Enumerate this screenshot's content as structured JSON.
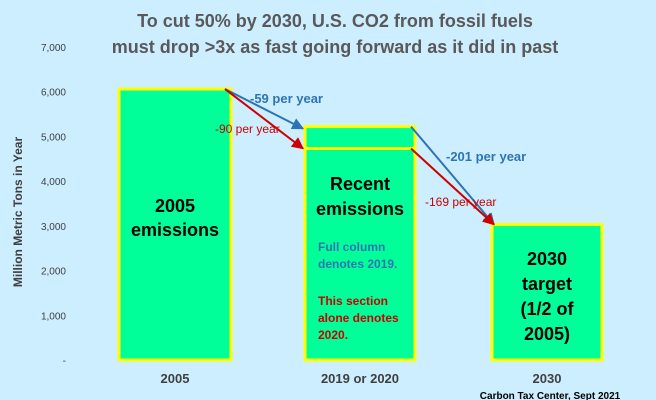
{
  "chart_data": {
    "type": "bar",
    "title": "To cut 50% by 2030, U.S. CO2 from fossil fuels",
    "subtitle": "must drop >3x as fast going forward as it did in past",
    "ylabel": "Million Metric Tons in Year",
    "yticks": [
      "-",
      "1,000",
      "2,000",
      "3,000",
      "4,000",
      "5,000",
      "6,000",
      "7,000"
    ],
    "ylim": [
      0,
      7000
    ],
    "grid": false,
    "categories": [
      "2005",
      "2019 or 2020",
      "2030"
    ],
    "values": [
      6060,
      5220,
      3030
    ],
    "overlay_value_2020": 4730,
    "bar_labels": {
      "b2005": [
        "2005",
        "emissions"
      ],
      "recent": [
        "Recent",
        "emissions"
      ],
      "target": [
        "2030",
        "target",
        "(1/2 of",
        "2005)"
      ]
    },
    "notes": {
      "blue": [
        "Full column",
        "denotes 2019."
      ],
      "red": [
        "This section",
        "alone denotes",
        "2020."
      ]
    },
    "rates": {
      "past_2019": "-59 per year",
      "past_2020": "-90 per year",
      "future_2019": "-201 per year",
      "future_2020": "-169 per year"
    },
    "credit": "Carbon Tax Center, Sept 2021",
    "colors": {
      "bar_fill": "#00ff99",
      "bar_border": "#ffff00",
      "blue": "#2e74b5",
      "red": "#cc0000",
      "background": "#cdeeff"
    }
  }
}
